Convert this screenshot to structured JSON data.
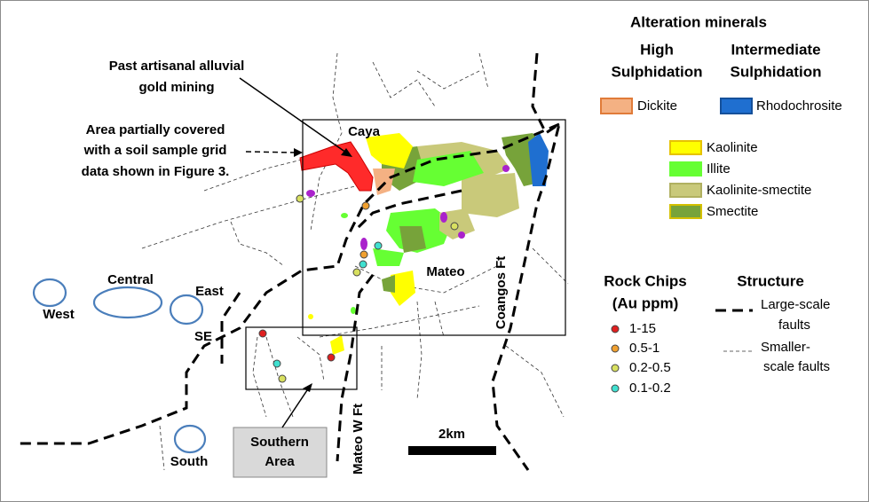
{
  "annotations": {
    "mining": [
      "Past artisanal alluvial",
      "gold mining"
    ],
    "soil_grid": [
      "Area partially covered",
      "with a soil sample grid",
      "data shown in Figure 3."
    ]
  },
  "map_labels": {
    "caya": "Caya",
    "mateo": "Mateo",
    "coangos_fault": "Coangos Ft",
    "mateo_w_fault": "Mateo W Ft",
    "west": "West",
    "central": "Central",
    "east": "East",
    "se": "SE",
    "south": "South",
    "southern_area": [
      "Southern",
      "Area"
    ],
    "scale": "2km"
  },
  "legend": {
    "alteration": {
      "title": "Alteration minerals",
      "high_sulphidation": [
        "High",
        "Sulphidation"
      ],
      "intermediate_sulphidation": [
        "Intermediate",
        "Sulphidation"
      ],
      "items": [
        "Dickite",
        "Rhodochrosite",
        "Kaolinite",
        "Illite",
        "Kaolinite-smectite",
        "Smectite"
      ]
    },
    "rock_chips": {
      "title": [
        "Rock Chips",
        "(Au ppm)"
      ],
      "items": [
        "1-15",
        "0.5-1",
        "0.2-0.5",
        "0.1-0.2"
      ]
    },
    "structure": {
      "title": "Structure",
      "large": [
        "Large-scale",
        "faults"
      ],
      "small": [
        "Smaller-",
        "scale faults"
      ]
    }
  }
}
